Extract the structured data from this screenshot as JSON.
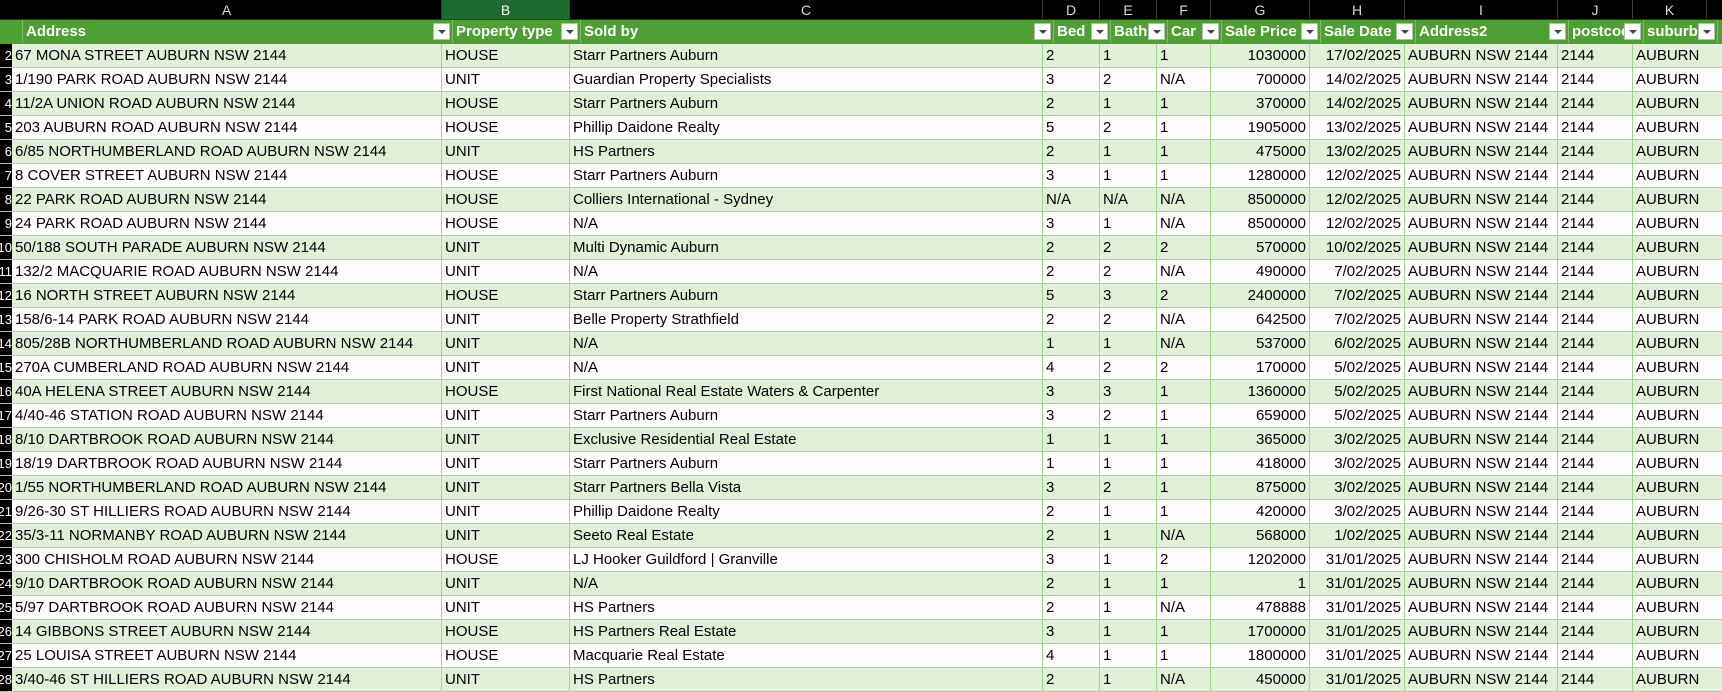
{
  "column_letters": [
    "A",
    "B",
    "C",
    "D",
    "E",
    "F",
    "G",
    "H",
    "I",
    "J",
    "K"
  ],
  "selected_column": "B",
  "headers": [
    "Address",
    "Property type",
    "Sold by",
    "Bed",
    "Bath",
    "Car",
    "Sale Price",
    "Sale Date",
    "Address2",
    "postcode",
    "suburb"
  ],
  "row_numbers": [
    "2",
    "3",
    "4",
    "5",
    "6",
    "7",
    "8",
    "9",
    "10",
    "11",
    "12",
    "13",
    "14",
    "15",
    "16",
    "17",
    "18",
    "19",
    "20",
    "21",
    "22",
    "23",
    "24",
    "25",
    "26",
    "27",
    "28"
  ],
  "rows": [
    [
      "67 MONA STREET AUBURN NSW 2144",
      "HOUSE",
      "Starr Partners Auburn",
      "2",
      "1",
      "1",
      "1030000",
      "17/02/2025",
      "AUBURN NSW 2144",
      "2144",
      "AUBURN"
    ],
    [
      "1/190 PARK ROAD AUBURN NSW 2144",
      "UNIT",
      "Guardian Property Specialists",
      "3",
      "2",
      "N/A",
      "700000",
      "14/02/2025",
      "AUBURN NSW 2144",
      "2144",
      "AUBURN"
    ],
    [
      "11/2A UNION ROAD AUBURN NSW 2144",
      "HOUSE",
      "Starr Partners Auburn",
      "2",
      "1",
      "1",
      "370000",
      "14/02/2025",
      "AUBURN NSW 2144",
      "2144",
      "AUBURN"
    ],
    [
      "203 AUBURN ROAD AUBURN NSW 2144",
      "HOUSE",
      "Phillip Daidone Realty",
      "5",
      "2",
      "1",
      "1905000",
      "13/02/2025",
      "AUBURN NSW 2144",
      "2144",
      "AUBURN"
    ],
    [
      "6/85 NORTHUMBERLAND ROAD AUBURN NSW 2144",
      "UNIT",
      "HS Partners",
      "2",
      "1",
      "1",
      "475000",
      "13/02/2025",
      "AUBURN NSW 2144",
      "2144",
      "AUBURN"
    ],
    [
      "8 COVER STREET AUBURN NSW 2144",
      "HOUSE",
      "Starr Partners Auburn",
      "3",
      "1",
      "1",
      "1280000",
      "12/02/2025",
      "AUBURN NSW 2144",
      "2144",
      "AUBURN"
    ],
    [
      "22 PARK ROAD AUBURN NSW 2144",
      "HOUSE",
      "Colliers International - Sydney",
      "N/A",
      "N/A",
      "N/A",
      "8500000",
      "12/02/2025",
      "AUBURN NSW 2144",
      "2144",
      "AUBURN"
    ],
    [
      "24 PARK ROAD AUBURN NSW 2144",
      "HOUSE",
      "N/A",
      "3",
      "1",
      "N/A",
      "8500000",
      "12/02/2025",
      "AUBURN NSW 2144",
      "2144",
      "AUBURN"
    ],
    [
      "50/188 SOUTH PARADE AUBURN NSW 2144",
      "UNIT",
      "Multi Dynamic Auburn",
      "2",
      "2",
      "2",
      "570000",
      "10/02/2025",
      "AUBURN NSW 2144",
      "2144",
      "AUBURN"
    ],
    [
      "132/2 MACQUARIE ROAD AUBURN NSW 2144",
      "UNIT",
      "N/A",
      "2",
      "2",
      "N/A",
      "490000",
      "7/02/2025",
      "AUBURN NSW 2144",
      "2144",
      "AUBURN"
    ],
    [
      "16 NORTH STREET AUBURN NSW 2144",
      "HOUSE",
      "Starr Partners Auburn",
      "5",
      "3",
      "2",
      "2400000",
      "7/02/2025",
      "AUBURN NSW 2144",
      "2144",
      "AUBURN"
    ],
    [
      "158/6-14 PARK ROAD AUBURN NSW 2144",
      "UNIT",
      "Belle Property Strathfield",
      "2",
      "2",
      "N/A",
      "642500",
      "7/02/2025",
      "AUBURN NSW 2144",
      "2144",
      "AUBURN"
    ],
    [
      "805/28B NORTHUMBERLAND ROAD AUBURN NSW 2144",
      "UNIT",
      "N/A",
      "1",
      "1",
      "N/A",
      "537000",
      "6/02/2025",
      "AUBURN NSW 2144",
      "2144",
      "AUBURN"
    ],
    [
      "270A CUMBERLAND ROAD AUBURN NSW 2144",
      "UNIT",
      "N/A",
      "4",
      "2",
      "2",
      "170000",
      "5/02/2025",
      "AUBURN NSW 2144",
      "2144",
      "AUBURN"
    ],
    [
      "40A HELENA STREET AUBURN NSW 2144",
      "HOUSE",
      "First National Real Estate Waters & Carpenter",
      "3",
      "3",
      "1",
      "1360000",
      "5/02/2025",
      "AUBURN NSW 2144",
      "2144",
      "AUBURN"
    ],
    [
      "4/40-46 STATION ROAD AUBURN NSW 2144",
      "UNIT",
      "Starr Partners Auburn",
      "3",
      "2",
      "1",
      "659000",
      "5/02/2025",
      "AUBURN NSW 2144",
      "2144",
      "AUBURN"
    ],
    [
      "8/10 DARTBROOK ROAD AUBURN NSW 2144",
      "UNIT",
      "Exclusive Residential Real Estate",
      "1",
      "1",
      "1",
      "365000",
      "3/02/2025",
      "AUBURN NSW 2144",
      "2144",
      "AUBURN"
    ],
    [
      "18/19 DARTBROOK ROAD AUBURN NSW 2144",
      "UNIT",
      "Starr Partners Auburn",
      "1",
      "1",
      "1",
      "418000",
      "3/02/2025",
      "AUBURN NSW 2144",
      "2144",
      "AUBURN"
    ],
    [
      "1/55 NORTHUMBERLAND ROAD AUBURN NSW 2144",
      "UNIT",
      "Starr Partners Bella Vista",
      "3",
      "2",
      "1",
      "875000",
      "3/02/2025",
      "AUBURN NSW 2144",
      "2144",
      "AUBURN"
    ],
    [
      "9/26-30 ST HILLIERS ROAD AUBURN NSW 2144",
      "UNIT",
      "Phillip Daidone Realty",
      "2",
      "1",
      "1",
      "420000",
      "3/02/2025",
      "AUBURN NSW 2144",
      "2144",
      "AUBURN"
    ],
    [
      "35/3-11 NORMANBY ROAD AUBURN NSW 2144",
      "UNIT",
      "Seeto Real Estate",
      "2",
      "1",
      "N/A",
      "568000",
      "1/02/2025",
      "AUBURN NSW 2144",
      "2144",
      "AUBURN"
    ],
    [
      "300 CHISHOLM ROAD AUBURN NSW 2144",
      "HOUSE",
      "LJ Hooker Guildford | Granville",
      "3",
      "1",
      "2",
      "1202000",
      "31/01/2025",
      "AUBURN NSW 2144",
      "2144",
      "AUBURN"
    ],
    [
      "9/10 DARTBROOK ROAD AUBURN NSW 2144",
      "UNIT",
      "N/A",
      "2",
      "1",
      "1",
      "1",
      "31/01/2025",
      "AUBURN NSW 2144",
      "2144",
      "AUBURN"
    ],
    [
      "5/97 DARTBROOK ROAD AUBURN NSW 2144",
      "UNIT",
      "HS Partners",
      "2",
      "1",
      "N/A",
      "478888",
      "31/01/2025",
      "AUBURN NSW 2144",
      "2144",
      "AUBURN"
    ],
    [
      "14 GIBBONS STREET AUBURN NSW 2144",
      "HOUSE",
      "HS Partners Real Estate",
      "3",
      "1",
      "1",
      "1700000",
      "31/01/2025",
      "AUBURN NSW 2144",
      "2144",
      "AUBURN"
    ],
    [
      "25 LOUISA STREET AUBURN NSW 2144",
      "HOUSE",
      "Macquarie Real Estate",
      "4",
      "1",
      "1",
      "1800000",
      "31/01/2025",
      "AUBURN NSW 2144",
      "2144",
      "AUBURN"
    ],
    [
      "3/40-46 ST HILLIERS ROAD AUBURN NSW 2144",
      "UNIT",
      "HS Partners",
      "2",
      "1",
      "N/A",
      "450000",
      "31/01/2025",
      "AUBURN NSW 2144",
      "2144",
      "AUBURN"
    ]
  ]
}
